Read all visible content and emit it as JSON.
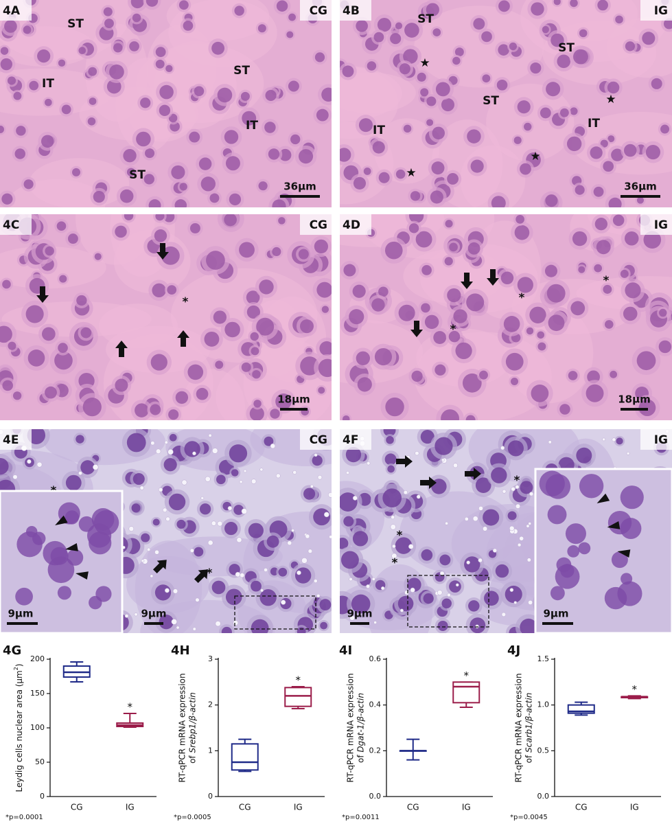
{
  "micrographs": [
    {
      "label": "4A",
      "group": "CG",
      "annotations": [
        "ST",
        "ST",
        "IT",
        "IT",
        "ST"
      ],
      "scale": "36μm"
    },
    {
      "label": "4B",
      "group": "IG",
      "annotations": [
        "ST",
        "ST",
        "ST",
        "IT",
        "IT",
        "★",
        "★",
        "★",
        "★"
      ],
      "scale": "36μm"
    },
    {
      "label": "4C",
      "group": "CG",
      "annotations": [
        "*"
      ],
      "scale": "18μm"
    },
    {
      "label": "4D",
      "group": "IG",
      "annotations": [
        "*",
        "*",
        "*"
      ],
      "scale": "18μm"
    },
    {
      "label": "4E",
      "group": "CG",
      "annotations": [
        "*",
        "*"
      ],
      "scale": "9μm",
      "inset_scale": "9μm"
    },
    {
      "label": "4F",
      "group": "IG",
      "annotations": [
        "*",
        "*",
        "*"
      ],
      "scale": "9μm",
      "inset_scale": "9μm"
    }
  ],
  "chart_data": [
    {
      "type": "box",
      "title": "4G",
      "ylabel": [
        [
          {
            "text": "Leydig cells nuclear area (μm"
          },
          {
            "text": "2",
            "sup": true
          },
          {
            "text": ")"
          }
        ]
      ],
      "categories": [
        "CG",
        "IG"
      ],
      "boxes": [
        {
          "min": 167,
          "q1": 174,
          "median": 181,
          "q3": 190,
          "max": 196,
          "color": "#1f2a88"
        },
        {
          "min": 101,
          "q1": 102,
          "median": 104,
          "q3": 107,
          "max": 121,
          "color": "#9b1d4a"
        }
      ],
      "annotation": "*",
      "note": "*p=0.0001",
      "ylim": [
        0,
        200
      ],
      "yticks": [
        0,
        50,
        100,
        150,
        200
      ]
    },
    {
      "type": "box",
      "title": "4H",
      "ylabel": [
        [
          {
            "text": "RT-qPCR mRNA expression"
          }
        ],
        [
          {
            "text": "of "
          },
          {
            "text": "Srebp1/β-actin",
            "italic": true
          }
        ]
      ],
      "categories": [
        "CG",
        "IG"
      ],
      "boxes": [
        {
          "min": 0.55,
          "q1": 0.58,
          "median": 0.75,
          "q3": 1.15,
          "max": 1.25,
          "color": "#1f2a88"
        },
        {
          "min": 1.92,
          "q1": 1.97,
          "median": 2.2,
          "q3": 2.38,
          "max": 2.4,
          "color": "#9b1d4a"
        }
      ],
      "annotation": "*",
      "note": "*p=0.0005",
      "ylim": [
        0,
        3
      ],
      "yticks": [
        0,
        1,
        2,
        3
      ]
    },
    {
      "type": "box",
      "title": "4I",
      "ylabel": [
        [
          {
            "text": "RT-qPCR mRNA expression"
          }
        ],
        [
          {
            "text": "of "
          },
          {
            "text": "Dgat-1/β-actin",
            "italic": true
          }
        ]
      ],
      "categories": [
        "CG",
        "IG"
      ],
      "boxes": [
        {
          "min": 0.16,
          "q1": 0.2,
          "median": 0.2,
          "q3": 0.2,
          "max": 0.25,
          "color": "#1f2a88"
        },
        {
          "min": 0.39,
          "q1": 0.41,
          "median": 0.48,
          "q3": 0.5,
          "max": 0.5,
          "color": "#9b1d4a"
        }
      ],
      "annotation": "*",
      "note": "*p=0.0011",
      "ylim": [
        0,
        0.6
      ],
      "yticks": [
        {
          "value": 0,
          "label": "0.0"
        },
        0.2,
        0.4,
        0.6
      ]
    },
    {
      "type": "box",
      "title": "4J",
      "ylabel": [
        [
          {
            "text": "RT-qPCR mRNA expression"
          }
        ],
        [
          {
            "text": "of "
          },
          {
            "text": "Scarb1/β-actin",
            "italic": true
          }
        ]
      ],
      "categories": [
        "CG",
        "IG"
      ],
      "boxes": [
        {
          "min": 0.89,
          "q1": 0.91,
          "median": 0.93,
          "q3": 1.0,
          "max": 1.03,
          "color": "#1f2a88"
        },
        {
          "min": 1.07,
          "q1": 1.08,
          "median": 1.09,
          "q3": 1.09,
          "max": 1.1,
          "color": "#9b1d4a"
        }
      ],
      "annotation": "*",
      "note": "*p=0.0045",
      "ylim": [
        0,
        1.5
      ],
      "yticks": [
        {
          "value": 0,
          "label": "0.0"
        },
        0.5,
        {
          "value": 1,
          "label": "1.0"
        },
        1.5
      ]
    }
  ]
}
